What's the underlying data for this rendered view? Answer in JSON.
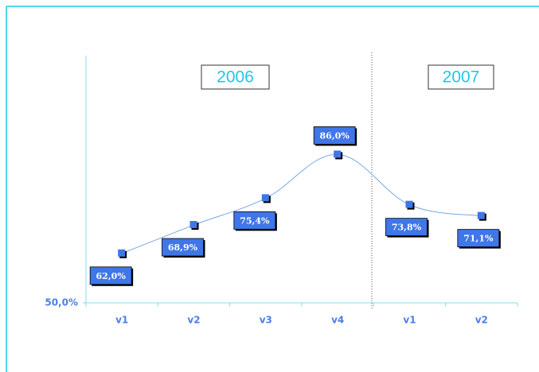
{
  "chart_data": {
    "type": "line",
    "categories": [
      "v1",
      "v2",
      "v3",
      "v4",
      "v1",
      "v2"
    ],
    "values": [
      62.0,
      68.9,
      75.4,
      86.0,
      73.8,
      71.1
    ],
    "value_labels": [
      "62,0%",
      "68,9%",
      "75,4%",
      "86,0%",
      "73,8%",
      "71,1%"
    ],
    "color": "#3f76e8",
    "ylim": [
      50,
      110
    ],
    "yticks": [
      {
        "value": 50,
        "label": "50,0%"
      }
    ],
    "annotations": [
      "2006",
      "2007"
    ]
  }
}
